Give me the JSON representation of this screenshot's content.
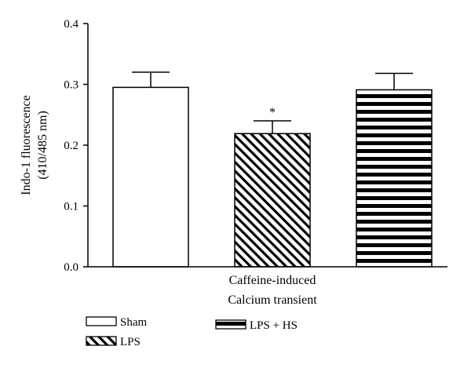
{
  "chart_data": {
    "type": "bar",
    "title": "",
    "ylabel": [
      "Indo-1 fluorescence",
      "(410/485 nm)"
    ],
    "xlabel": [
      "Caffeine-induced",
      "Calcium transient"
    ],
    "ylim": [
      0,
      0.4
    ],
    "yticks": [
      0.0,
      0.1,
      0.2,
      0.3,
      0.4
    ],
    "ytick_labels": [
      "0.0",
      "0.1",
      "0.2",
      "0.3",
      "0.4"
    ],
    "grid": false,
    "legend_position": "bottom",
    "series": [
      {
        "name": "Sham",
        "value": 0.295,
        "error": 0.025,
        "fill": "none",
        "annotation": ""
      },
      {
        "name": "LPS",
        "value": 0.219,
        "error": 0.021,
        "fill": "diagonal-hatch",
        "annotation": "*"
      },
      {
        "name": "LPS + HS",
        "value": 0.291,
        "error": 0.027,
        "fill": "horizontal-stripes",
        "annotation": ""
      }
    ]
  },
  "colors": {
    "ink": "#000000",
    "background": "#ffffff"
  }
}
